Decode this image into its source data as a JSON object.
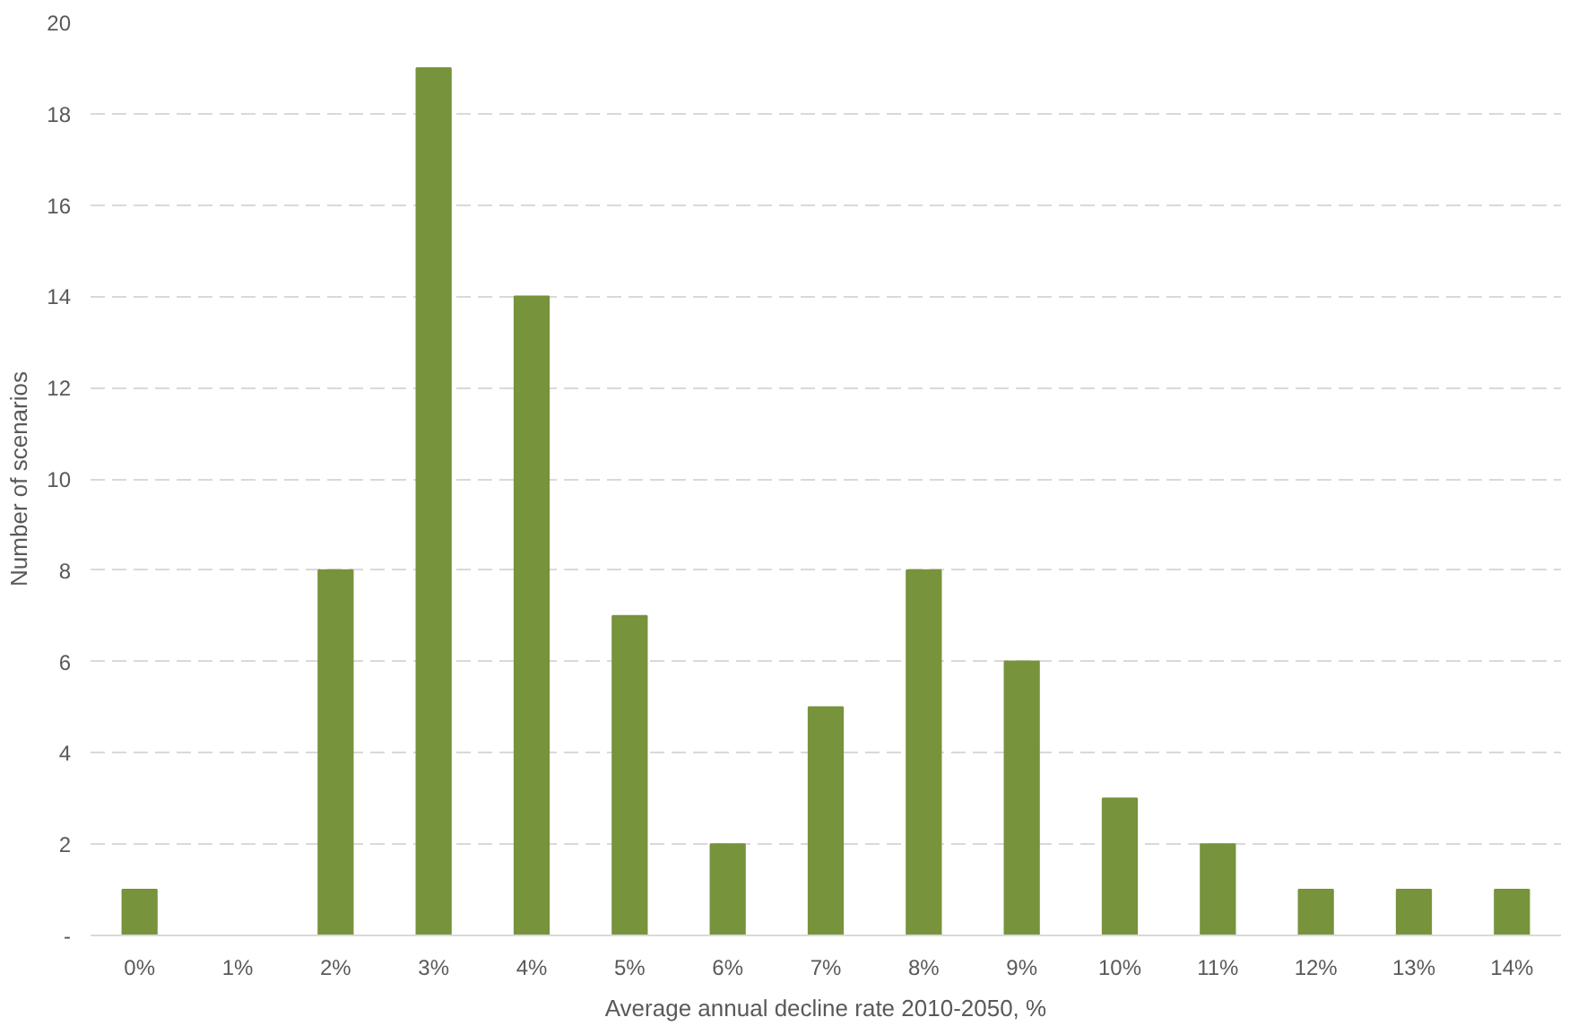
{
  "chart_data": {
    "type": "bar",
    "xlabel": "Average annual decline rate 2010-2050, %",
    "ylabel": "Number of scenarios",
    "categories": [
      "0%",
      "1%",
      "2%",
      "3%",
      "4%",
      "5%",
      "6%",
      "7%",
      "8%",
      "9%",
      "10%",
      "11%",
      "12%",
      "13%",
      "14%"
    ],
    "values": [
      1,
      0,
      8,
      19,
      14,
      7,
      2,
      5,
      8,
      6,
      3,
      2,
      1,
      1,
      1
    ],
    "color": "#77933c",
    "ylim": [
      0,
      20
    ],
    "yticks": [
      {
        "value": 0,
        "label": "-"
      },
      2,
      4,
      6,
      8,
      10,
      12,
      14,
      16,
      18,
      20
    ],
    "grid": "y"
  }
}
